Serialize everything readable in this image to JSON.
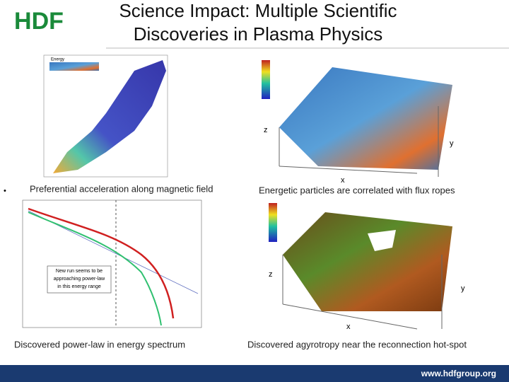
{
  "header": {
    "logo": "HDF",
    "title_lines": [
      "Science Impact: Multiple Scientific",
      "Discoveries in Plasma Physics"
    ]
  },
  "panels": [
    {
      "caption": "Preferential acceleration along magnetic field",
      "bullet": "•",
      "legend": "Energy"
    },
    {
      "caption": "Energetic particles are correlated with flux ropes",
      "axes": [
        "x",
        "y",
        "z"
      ]
    },
    {
      "caption": "Discovered power-law in energy spectrum",
      "note_lines": [
        "New run seems to be",
        "approaching power-law",
        "in this energy range"
      ]
    },
    {
      "caption": "Discovered agyrotropy near the reconnection hot-spot",
      "axes": [
        "x",
        "y",
        "z"
      ]
    }
  ],
  "footer": {
    "url": "www.hdfgroup.org"
  }
}
